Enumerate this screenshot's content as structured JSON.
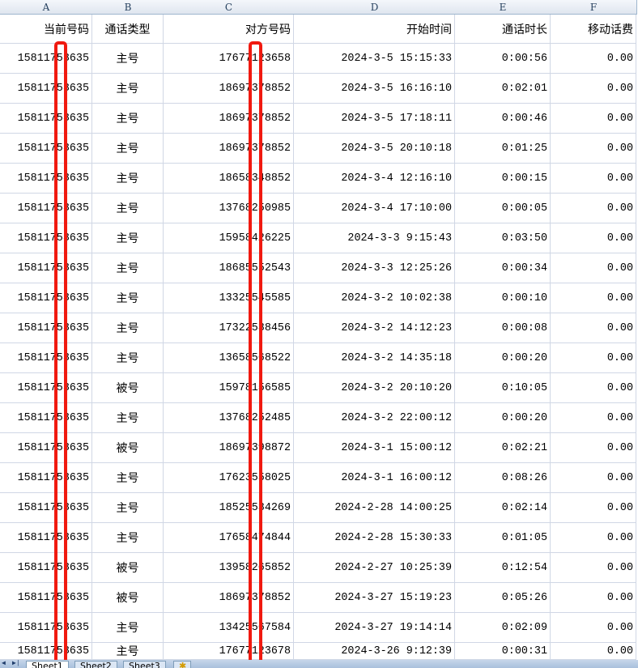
{
  "columns": [
    "A",
    "B",
    "C",
    "D",
    "E",
    "F"
  ],
  "headers": [
    "当前号码",
    "通话类型",
    "对方号码",
    "开始时间",
    "通话时长",
    "移动话费"
  ],
  "rows": [
    [
      "15811753635",
      "主号",
      "17677123658",
      "2024-3-5 15:15:33",
      "0:00:56",
      "0.00"
    ],
    [
      "15811753635",
      "主号",
      "18697378852",
      "2024-3-5 16:16:10",
      "0:02:01",
      "0.00"
    ],
    [
      "15811753635",
      "主号",
      "18697378852",
      "2024-3-5 17:18:11",
      "0:00:46",
      "0.00"
    ],
    [
      "15811753635",
      "主号",
      "18697378852",
      "2024-3-5 20:10:18",
      "0:01:25",
      "0.00"
    ],
    [
      "15811753635",
      "主号",
      "18658348852",
      "2024-3-4 12:16:10",
      "0:00:15",
      "0.00"
    ],
    [
      "15811753635",
      "主号",
      "13768250985",
      "2024-3-4 17:10:00",
      "0:00:05",
      "0.00"
    ],
    [
      "15811753635",
      "主号",
      "15958426225",
      "2024-3-3 9:15:43",
      "0:03:50",
      "0.00"
    ],
    [
      "15811753635",
      "主号",
      "18685552543",
      "2024-3-3 12:25:26",
      "0:00:34",
      "0.00"
    ],
    [
      "15811753635",
      "主号",
      "13325545585",
      "2024-3-2 10:02:38",
      "0:00:10",
      "0.00"
    ],
    [
      "15811753635",
      "主号",
      "17322538456",
      "2024-3-2 14:12:23",
      "0:00:08",
      "0.00"
    ],
    [
      "15811753635",
      "主号",
      "13658568522",
      "2024-3-2 14:35:18",
      "0:00:20",
      "0.00"
    ],
    [
      "15811753635",
      "被号",
      "15978156585",
      "2024-3-2 20:10:20",
      "0:10:05",
      "0.00"
    ],
    [
      "15811753635",
      "主号",
      "13768252485",
      "2024-3-2 22:00:12",
      "0:00:20",
      "0.00"
    ],
    [
      "15811753635",
      "被号",
      "18697398872",
      "2024-3-1 15:00:12",
      "0:02:21",
      "0.00"
    ],
    [
      "15811753635",
      "主号",
      "17623558025",
      "2024-3-1 16:00:12",
      "0:08:26",
      "0.00"
    ],
    [
      "15811753635",
      "主号",
      "18525534269",
      "2024-2-28 14:00:25",
      "0:02:14",
      "0.00"
    ],
    [
      "15811753635",
      "主号",
      "17658474844",
      "2024-2-28 15:30:33",
      "0:01:05",
      "0.00"
    ],
    [
      "15811753635",
      "被号",
      "13958265852",
      "2024-2-27 10:25:39",
      "0:12:54",
      "0.00"
    ],
    [
      "15811753635",
      "被号",
      "18697378852",
      "2024-3-27 15:19:23",
      "0:05:26",
      "0.00"
    ],
    [
      "15811753635",
      "主号",
      "13425567584",
      "2024-3-27 19:14:14",
      "0:02:09",
      "0.00"
    ],
    [
      "15811753635",
      "主号",
      "17677123678",
      "2024-3-26 9:12:39",
      "0:00:31",
      "0.00"
    ]
  ],
  "sheet_tabs": [
    "Sheet1",
    "Sheet2",
    "Sheet3"
  ],
  "active_sheet": "Sheet1",
  "redaction_color": "#f01a10"
}
